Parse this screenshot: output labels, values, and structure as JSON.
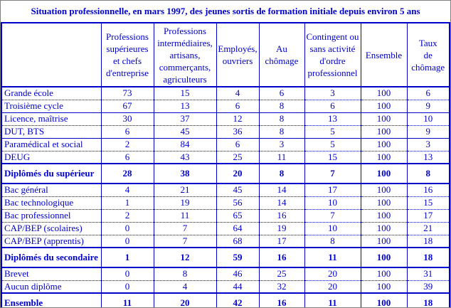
{
  "title": "Situation professionnelle, en mars 1997, des jeunes sortis de formation initiale depuis environ 5 ans",
  "colors": {
    "text_and_borders": "#0000CC",
    "outer_frame": "#808080",
    "background": "#FFFFFF"
  },
  "chart_data": {
    "type": "table",
    "title": "Situation professionnelle, en mars 1997, des jeunes sortis de formation initiale depuis environ 5 ans",
    "unit_hint": "percentages, rows sum to 100 (Ensemble)",
    "columns": [
      "",
      "Professions\nsupérieures\net chefs\nd'entreprise",
      "Professions\nintermédiaires,\nartisans,\ncommerçants,\nagriculteurs",
      "Employés,\nouvriers",
      "Au\nchômage",
      "Contingent ou\nsans activité\nd'ordre\nprofessionnel",
      "Ensemble",
      "Taux\nde\nchômage"
    ],
    "rows": [
      {
        "label": "Grande école",
        "values": [
          73,
          15,
          4,
          6,
          3,
          100,
          6
        ],
        "bold": false,
        "separator": "dotted"
      },
      {
        "label": "Troisième cycle",
        "values": [
          67,
          13,
          6,
          8,
          6,
          100,
          9
        ],
        "bold": false,
        "separator": "solid"
      },
      {
        "label": "Licence, maîtrise",
        "values": [
          30,
          37,
          12,
          8,
          13,
          100,
          10
        ],
        "bold": false,
        "separator": "dotted"
      },
      {
        "label": "DUT, BTS",
        "values": [
          6,
          45,
          36,
          8,
          5,
          100,
          9
        ],
        "bold": false,
        "separator": "solid"
      },
      {
        "label": "Paramédical et social",
        "values": [
          2,
          84,
          6,
          3,
          5,
          100,
          3
        ],
        "bold": false,
        "separator": "dotted"
      },
      {
        "label": "DEUG",
        "values": [
          6,
          43,
          25,
          11,
          15,
          100,
          13
        ],
        "bold": false,
        "separator": "solid2"
      },
      {
        "label": "Diplômés du supérieur",
        "values": [
          28,
          38,
          20,
          8,
          7,
          100,
          8
        ],
        "bold": true,
        "separator": "solid2"
      },
      {
        "label": "Bac général",
        "values": [
          4,
          21,
          45,
          14,
          17,
          100,
          16
        ],
        "bold": false,
        "separator": "dotted"
      },
      {
        "label": "Bac technologique",
        "values": [
          1,
          19,
          56,
          14,
          10,
          100,
          15
        ],
        "bold": false,
        "separator": "dotted"
      },
      {
        "label": "Bac professionnel",
        "values": [
          2,
          11,
          65,
          16,
          7,
          100,
          17
        ],
        "bold": false,
        "separator": "dotted"
      },
      {
        "label": "CAP/BEP (scolaires)",
        "values": [
          0,
          7,
          64,
          19,
          10,
          100,
          21
        ],
        "bold": false,
        "separator": "dotted"
      },
      {
        "label": "CAP/BEP (apprentis)",
        "values": [
          0,
          7,
          68,
          17,
          8,
          100,
          18
        ],
        "bold": false,
        "separator": "solid2"
      },
      {
        "label": "Diplômés du secondaire",
        "values": [
          1,
          12,
          59,
          16,
          11,
          100,
          18
        ],
        "bold": true,
        "separator": "solid2"
      },
      {
        "label": "Brevet",
        "values": [
          0,
          8,
          46,
          25,
          20,
          100,
          31
        ],
        "bold": false,
        "separator": "dotted"
      },
      {
        "label": "Aucun diplôme",
        "values": [
          0,
          4,
          44,
          32,
          20,
          100,
          39
        ],
        "bold": false,
        "separator": "solid2"
      },
      {
        "label": "Ensemble",
        "values": [
          11,
          20,
          42,
          16,
          11,
          100,
          18
        ],
        "bold": true,
        "separator": "none"
      }
    ]
  }
}
